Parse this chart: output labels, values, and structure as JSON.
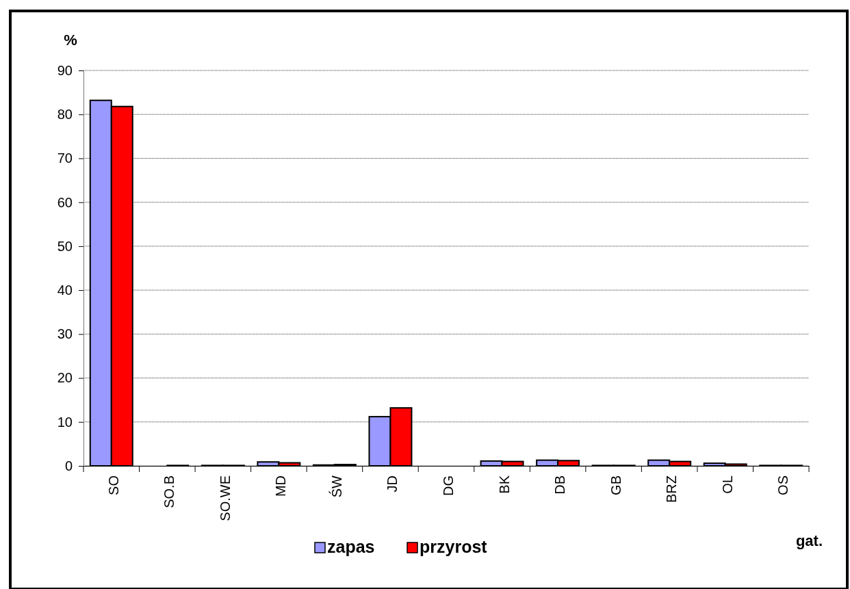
{
  "chart_data": {
    "type": "bar",
    "ylabel": "%",
    "xlabel": "gat.",
    "categories": [
      "SO",
      "SO.B",
      "SO.WE",
      "MD",
      "ŚW",
      "JD",
      "DG",
      "BK",
      "DB",
      "GB",
      "BRZ",
      "OL",
      "OS"
    ],
    "series": [
      {
        "name": "zapas",
        "color": "#9999ff",
        "values": [
          83.2,
          0,
          0.1,
          0.9,
          0.2,
          11.2,
          0,
          1.1,
          1.3,
          0.1,
          1.3,
          0.6,
          0.1
        ]
      },
      {
        "name": "przyrost",
        "color": "#ff0000",
        "values": [
          81.8,
          0.1,
          0.1,
          0.7,
          0.3,
          13.2,
          0,
          1.0,
          1.2,
          0.1,
          1.0,
          0.4,
          0.1
        ]
      }
    ],
    "ylim": [
      0,
      90
    ],
    "yticks": [
      0,
      10,
      20,
      30,
      40,
      50,
      60,
      70,
      80,
      90
    ],
    "grid": "y",
    "legend": "bottom"
  }
}
